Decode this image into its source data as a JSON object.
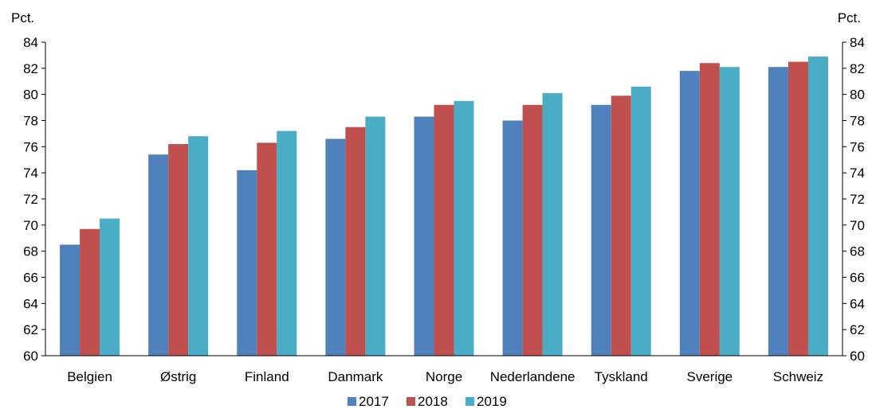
{
  "chart_data": {
    "type": "bar",
    "title": "",
    "ylabel_left": "Pct.",
    "ylabel_right": "Pct.",
    "ylim": [
      60,
      84
    ],
    "yticks": [
      60,
      62,
      64,
      66,
      68,
      70,
      72,
      74,
      76,
      78,
      80,
      82,
      84
    ],
    "categories": [
      "Belgien",
      "Østrig",
      "Finland",
      "Danmark",
      "Norge",
      "Nederlandene",
      "Tyskland",
      "Sverige",
      "Schweiz"
    ],
    "series": [
      {
        "name": "2017",
        "color": "#4f81bd",
        "values": [
          68.5,
          75.4,
          74.2,
          76.6,
          78.3,
          78.0,
          79.2,
          81.8,
          82.1
        ]
      },
      {
        "name": "2018",
        "color": "#c0504d",
        "values": [
          69.7,
          76.2,
          76.3,
          77.5,
          79.2,
          79.2,
          79.9,
          82.4,
          82.5
        ]
      },
      {
        "name": "2019",
        "color": "#4bacc6",
        "values": [
          70.5,
          76.8,
          77.2,
          78.3,
          79.5,
          80.1,
          80.6,
          82.1,
          82.9
        ]
      }
    ],
    "legend_position": "bottom",
    "grid": false
  }
}
